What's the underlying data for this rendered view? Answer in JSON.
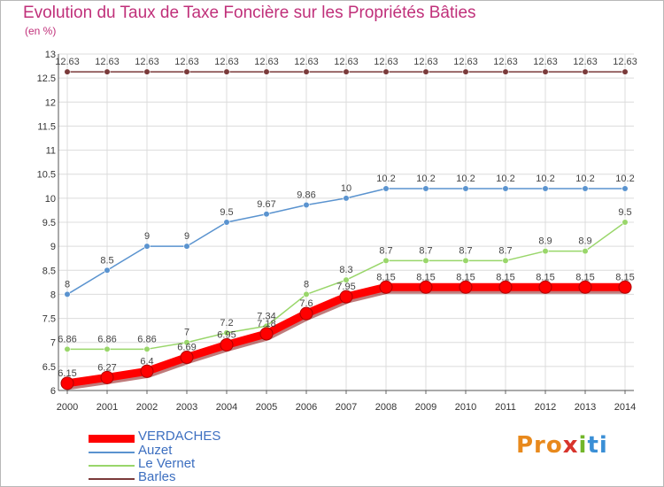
{
  "chart_data": {
    "type": "line",
    "title": "Evolution du Taux de Taxe Foncière sur les Propriétés Bâties",
    "unit_label": "(en %)",
    "xlabel": "",
    "ylabel": "",
    "x": [
      "2000",
      "2001",
      "2002",
      "2003",
      "2004",
      "2005",
      "2006",
      "2007",
      "2008",
      "2009",
      "2010",
      "2011",
      "2012",
      "2013",
      "2014"
    ],
    "ylim": [
      6,
      13
    ],
    "yticks": [
      "6",
      "6.5",
      "7",
      "7.5",
      "8",
      "8.5",
      "9",
      "9.5",
      "10",
      "10.5",
      "11",
      "11.5",
      "12",
      "12.5",
      "13"
    ],
    "grid": true,
    "legend_position": "bottom-left",
    "series": [
      {
        "name": "VERDACHES",
        "color": "#ff0000",
        "values": [
          6.15,
          6.27,
          6.4,
          6.69,
          6.95,
          7.18,
          7.6,
          7.95,
          8.15,
          8.15,
          8.15,
          8.15,
          8.15,
          8.15,
          8.15
        ],
        "labels": [
          "6.15",
          "6.27",
          "6.4",
          "6.69",
          "6.95",
          "7.18",
          "7.6",
          "7.95",
          "8.15",
          "8.15",
          "8.15",
          "8.15",
          "8.15",
          "8.15",
          "8.15"
        ]
      },
      {
        "name": "Auzet",
        "color": "#5a93cf",
        "values": [
          8,
          8.5,
          9,
          9,
          9.5,
          9.67,
          9.86,
          10,
          10.2,
          10.2,
          10.2,
          10.2,
          10.2,
          10.2,
          10.2
        ],
        "labels": [
          "8",
          "8.5",
          "9",
          "9",
          "9.5",
          "9.67",
          "9.86",
          "10",
          "10.2",
          "10.2",
          "10.2",
          "10.2",
          "10.2",
          "10.2",
          "10.2"
        ]
      },
      {
        "name": "Le Vernet",
        "color": "#99d66a",
        "values": [
          6.86,
          6.86,
          6.86,
          7,
          7.2,
          7.34,
          8,
          8.3,
          8.7,
          8.7,
          8.7,
          8.7,
          8.9,
          8.9,
          9.5
        ],
        "labels": [
          "6.86",
          "6.86",
          "6.86",
          "7",
          "7.2",
          "7.34",
          "8",
          "8.3",
          "8.7",
          "8.7",
          "8.7",
          "8.7",
          "8.9",
          "8.9",
          "9.5"
        ]
      },
      {
        "name": "Barles",
        "color": "#7a3a3a",
        "values": [
          12.63,
          12.63,
          12.63,
          12.63,
          12.63,
          12.63,
          12.63,
          12.63,
          12.63,
          12.63,
          12.63,
          12.63,
          12.63,
          12.63,
          12.63
        ],
        "labels": [
          "12.63",
          "12.63",
          "12.63",
          "12.63",
          "12.63",
          "12.63",
          "12.63",
          "12.63",
          "12.63",
          "12.63",
          "12.63",
          "12.63",
          "12.63",
          "12.63",
          "12.63"
        ]
      }
    ]
  },
  "legend": {
    "items": [
      "VERDACHES",
      "Auzet",
      "Le Vernet",
      "Barles"
    ]
  },
  "brand": {
    "logo_parts": [
      "Pro",
      "x",
      "i",
      "ti"
    ]
  }
}
